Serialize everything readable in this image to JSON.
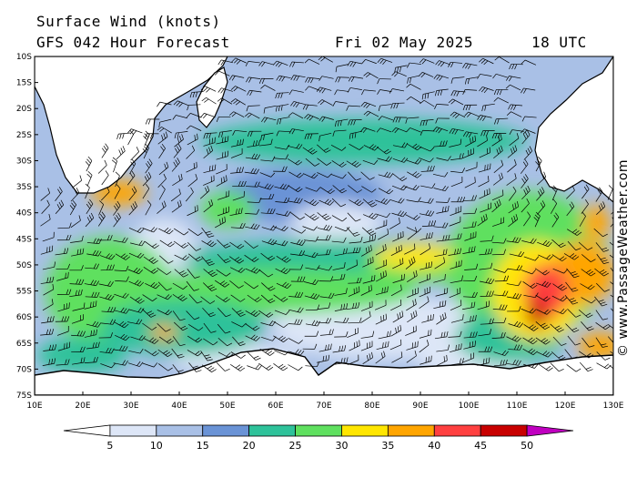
{
  "header": {
    "title": "Surface Wind (knots)",
    "subtitle": "GFS 042 Hour Forecast",
    "date": "Fri 02 May 2025",
    "time": "18 UTC"
  },
  "credit": "© www.PassageWeather.com",
  "map": {
    "lat_labels": [
      "10S",
      "15S",
      "20S",
      "25S",
      "30S",
      "35S",
      "40S",
      "45S",
      "50S",
      "55S",
      "60S",
      "65S",
      "70S",
      "75S"
    ],
    "lon_labels": [
      "10E",
      "20E",
      "30E",
      "40E",
      "50E",
      "60E",
      "70E",
      "80E",
      "90E",
      "100E",
      "110E",
      "120E",
      "130E"
    ],
    "colors": {
      "coastline": "#000000",
      "land": "#ffffff",
      "barb": "#000000",
      "grid": "#9a9a9a"
    }
  },
  "legend": {
    "unit": "knots",
    "labels": [
      "5",
      "10",
      "15",
      "20",
      "25",
      "30",
      "35",
      "40",
      "45",
      "50"
    ],
    "colors": [
      "#ffffff",
      "#dde6f7",
      "#a9c0e6",
      "#6a93d6",
      "#2ec29a",
      "#5fe05f",
      "#ffe600",
      "#ffa500",
      "#ff4040",
      "#c80000",
      "#c000c0"
    ]
  }
}
